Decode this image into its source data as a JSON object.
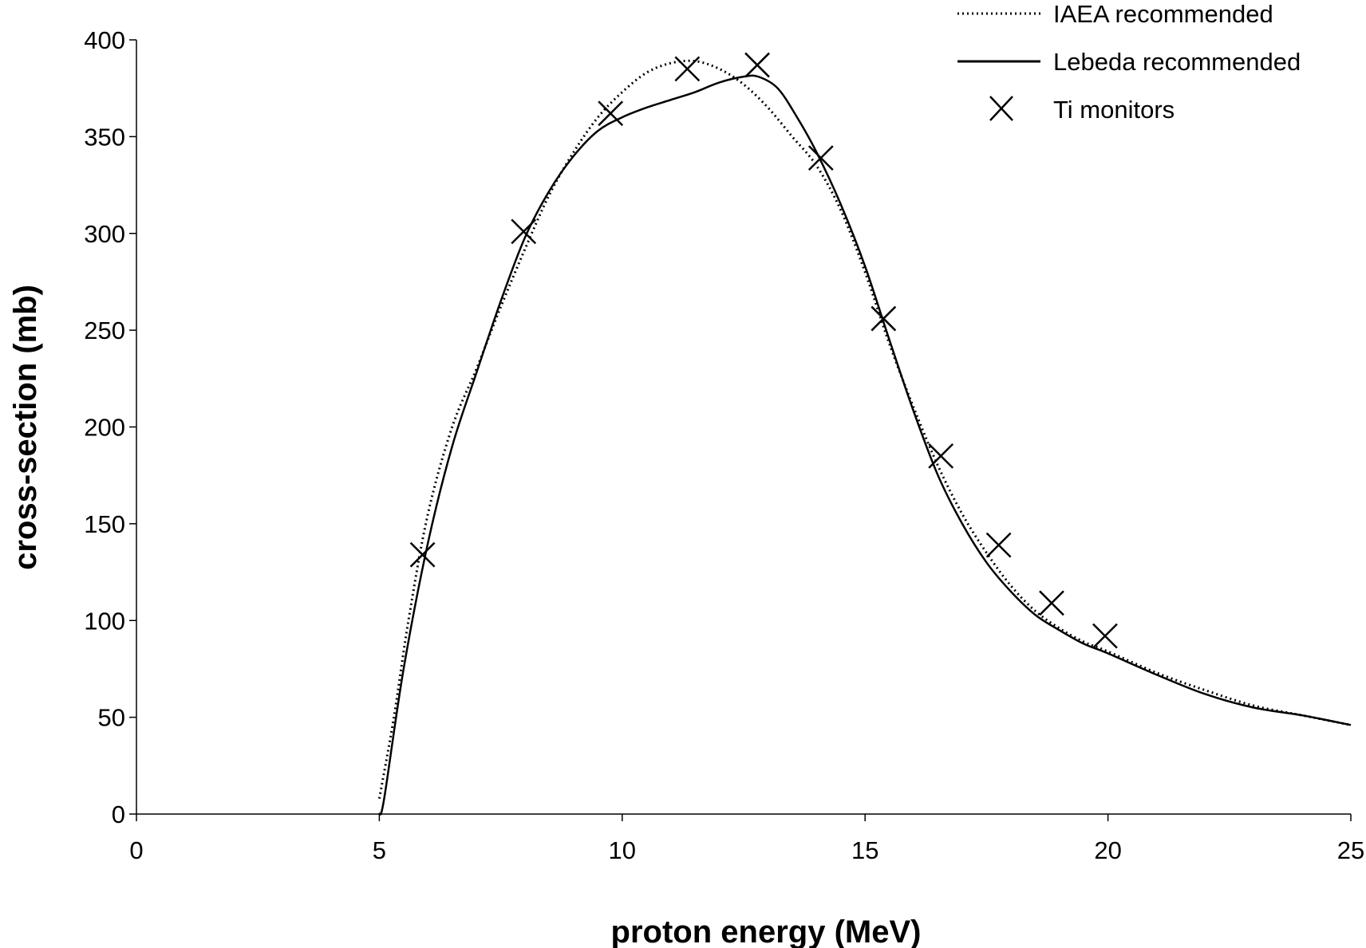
{
  "chart_data": {
    "type": "line",
    "title": "",
    "xlabel": "proton energy (MeV)",
    "ylabel": "cross-section (mb)",
    "xlim": [
      0,
      25
    ],
    "ylim": [
      0,
      400
    ],
    "xticks": [
      "0",
      "5",
      "10",
      "15",
      "20",
      "25"
    ],
    "yticks": [
      "0",
      "50",
      "100",
      "150",
      "200",
      "250",
      "300",
      "350",
      "400"
    ],
    "grid": false,
    "legend_position": "top-right",
    "series": [
      {
        "name": "IAEA recommended",
        "style": "dotted-line",
        "color": "#000000",
        "x": [
          5,
          5.3,
          5.6,
          6,
          6.5,
          7,
          7.5,
          8,
          8.5,
          9,
          9.5,
          10,
          10.5,
          11,
          11.5,
          12,
          12.5,
          13,
          13.5,
          14,
          14.5,
          15,
          15.5,
          16,
          16.5,
          17,
          17.5,
          18,
          18.5,
          19,
          19.5,
          20,
          21,
          22,
          23,
          24,
          25
        ],
        "y": [
          8,
          50,
          100,
          155,
          200,
          230,
          262,
          292,
          320,
          342,
          360,
          373,
          383,
          388,
          389,
          385,
          377,
          365,
          350,
          335,
          312,
          280,
          243,
          210,
          180,
          155,
          135,
          118,
          105,
          96,
          89,
          84,
          73,
          64,
          56,
          51,
          46
        ]
      },
      {
        "name": "Lebeda recommended",
        "style": "solid-line",
        "color": "#000000",
        "x": [
          5,
          5.1,
          5.5,
          6,
          6.5,
          7,
          7.5,
          8,
          8.5,
          9,
          9.5,
          10,
          10.5,
          11,
          11.5,
          12,
          12.5,
          12.8,
          13.2,
          13.6,
          14,
          14.5,
          15,
          15.5,
          16,
          16.5,
          17,
          17.5,
          18,
          18.5,
          19,
          19.5,
          20,
          21,
          22,
          23,
          24,
          25
        ],
        "y": [
          0,
          8,
          75,
          140,
          190,
          228,
          265,
          298,
          322,
          340,
          353,
          360,
          365,
          369,
          373,
          378,
          381,
          381,
          375,
          360,
          342,
          315,
          283,
          245,
          208,
          175,
          150,
          130,
          115,
          103,
          95,
          88,
          83,
          72,
          62,
          55,
          51,
          46
        ]
      },
      {
        "name": "Ti monitors",
        "style": "x-markers",
        "color": "#000000",
        "x": [
          5.89,
          7.97,
          9.76,
          11.34,
          12.78,
          14.09,
          15.38,
          16.56,
          17.75,
          18.84,
          19.94
        ],
        "y": [
          134,
          301,
          362,
          385,
          387,
          339,
          256,
          185,
          139,
          109,
          92
        ]
      }
    ]
  }
}
